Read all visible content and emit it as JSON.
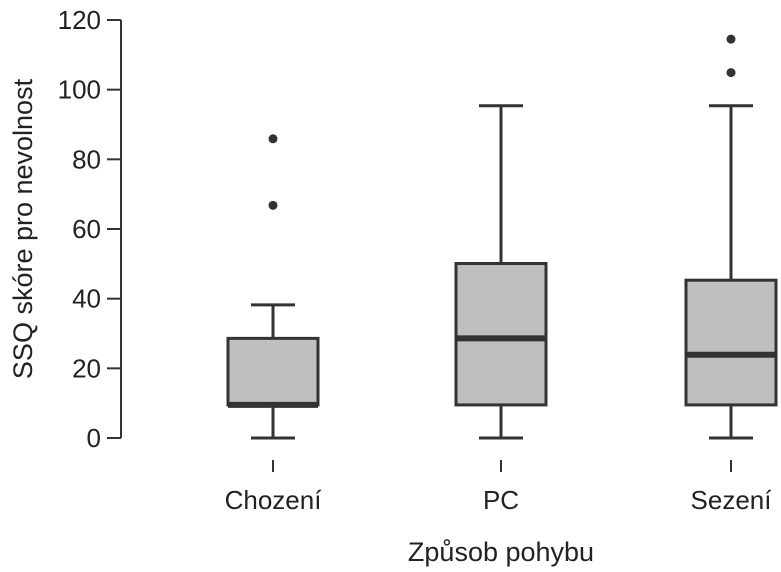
{
  "chart_data": {
    "type": "boxplot",
    "title": "",
    "xlabel": "Způsob pohybu",
    "ylabel": "SSQ skóre pro nevolnost",
    "ylim": [
      0,
      120
    ],
    "yticks": [
      0,
      20,
      40,
      60,
      80,
      100,
      120
    ],
    "grid": false,
    "categories": [
      "Chození",
      "PC",
      "Sezení"
    ],
    "boxes": [
      {
        "whisker_low": 0,
        "q1": 9.5,
        "median": 9.5,
        "q3": 28.6,
        "whisker_high": 38.2,
        "outliers": [
          66.8,
          85.9
        ]
      },
      {
        "whisker_low": 0,
        "q1": 9.5,
        "median": 28.6,
        "q3": 50.1,
        "whisker_high": 95.4,
        "outliers": []
      },
      {
        "whisker_low": 0,
        "q1": 9.5,
        "median": 23.9,
        "q3": 45.3,
        "whisker_high": 95.4,
        "outliers": [
          104.9,
          114.5
        ]
      }
    ],
    "colors": {
      "box_fill": "#bfbfbf",
      "stroke": "#333333",
      "outlier": "#333333"
    }
  }
}
